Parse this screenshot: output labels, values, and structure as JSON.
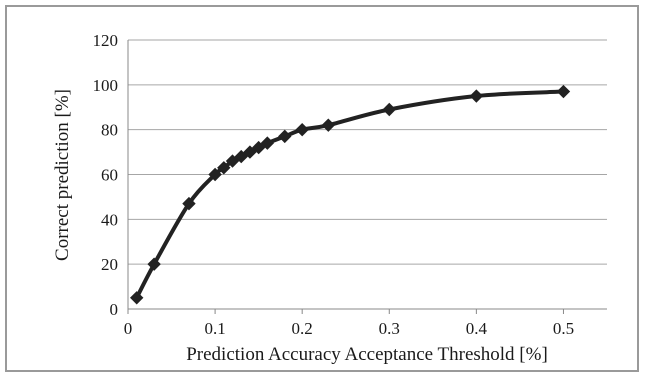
{
  "chart_data": {
    "type": "line",
    "title": "",
    "xlabel": "Prediction Accuracy Acceptance Threshold [%]",
    "ylabel": "Correct prediction [%]",
    "xlim": [
      0,
      0.55
    ],
    "ylim": [
      0,
      120
    ],
    "x_ticks": [
      0,
      0.1,
      0.2,
      0.3,
      0.4,
      0.5
    ],
    "x_tick_labels": [
      "0",
      "0.1",
      "0.2",
      "0.3",
      "0.4",
      "0.5"
    ],
    "y_ticks": [
      0,
      20,
      40,
      60,
      80,
      100,
      120
    ],
    "y_tick_labels": [
      "0",
      "20",
      "40",
      "60",
      "80",
      "100",
      "120"
    ],
    "grid": "horizontal",
    "legend": "none",
    "colors": {
      "line": "#222222",
      "marker": "#222222",
      "grid": "#a6a6a6",
      "frame": "#9a9a9a"
    },
    "series": [
      {
        "marker": "diamond",
        "x": [
          0.01,
          0.03,
          0.07,
          0.1,
          0.11,
          0.12,
          0.13,
          0.14,
          0.15,
          0.16,
          0.18,
          0.2,
          0.23,
          0.3,
          0.4,
          0.5
        ],
        "y": [
          5,
          20,
          47,
          60,
          63,
          66,
          68,
          70,
          72,
          74,
          77,
          80,
          82,
          89,
          95,
          97
        ]
      }
    ]
  }
}
